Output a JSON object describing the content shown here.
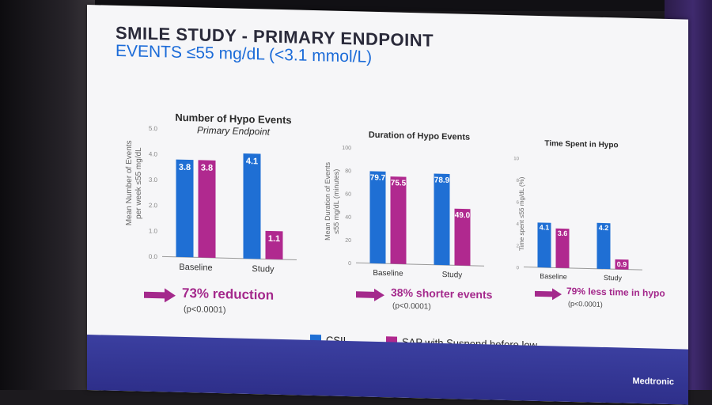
{
  "slide": {
    "title_line1": "SMILE STUDY  -  PRIMARY ENDPOINT",
    "title_line2": "EVENTS ≤55 mg/dL (<3.1 mmol/L)",
    "brand": "Medtronic",
    "colors": {
      "csii": "#1f6fd4",
      "sap": "#b0298f",
      "result_text": "#a4298c",
      "title_blue": "#1b6bd8"
    }
  },
  "legend": {
    "items": [
      {
        "label": "CSII",
        "color": "#1f6fd4"
      },
      {
        "label": "SAP with Suspend before low",
        "color": "#b0298f"
      }
    ]
  },
  "panels": [
    {
      "title": "Number of Hypo Events",
      "subtitle": "Primary Endpoint",
      "ylabel_line1": "Mean Number of Events",
      "ylabel_line2": "per week ≤55 mg/dL",
      "result": "73% reduction",
      "pvalue": "(p<0.0001)"
    },
    {
      "title": "Duration of Hypo Events",
      "subtitle": "",
      "ylabel_line1": "Mean Duration of Events",
      "ylabel_line2": "≤55 mg/dL (minutes)",
      "result": "38% shorter events",
      "pvalue": "(p<0.0001)"
    },
    {
      "title": "Time Spent in Hypo",
      "subtitle": "",
      "ylabel_line1": "Time spent ≤55 mg/dL (%)",
      "ylabel_line2": "",
      "result": "79% less time in hypo",
      "pvalue": "(p<0.0001)"
    }
  ],
  "chart_data": [
    {
      "type": "bar",
      "title": "Number of Hypo Events",
      "subtitle": "Primary Endpoint",
      "ylabel": "Mean Number of Events per week ≤55 mg/dL",
      "categories": [
        "Baseline",
        "Study"
      ],
      "series": [
        {
          "name": "CSII",
          "values": [
            3.8,
            4.1
          ]
        },
        {
          "name": "SAP with Suspend before low",
          "values": [
            3.8,
            1.1
          ]
        }
      ],
      "ylim": [
        0,
        5
      ],
      "yticks": [
        "0.0",
        "1.0",
        "2.0",
        "3.0",
        "4.0",
        "5.0"
      ],
      "labels": [
        "3.8",
        "4.1",
        "3.8",
        "1.1"
      ]
    },
    {
      "type": "bar",
      "title": "Duration of Hypo Events",
      "ylabel": "Mean Duration of Events ≤55 mg/dL (minutes)",
      "categories": [
        "Baseline",
        "Study"
      ],
      "series": [
        {
          "name": "CSII",
          "values": [
            79.7,
            78.9
          ]
        },
        {
          "name": "SAP with Suspend before low",
          "values": [
            75.5,
            49.0
          ]
        }
      ],
      "ylim": [
        0,
        100
      ],
      "yticks": [
        "0",
        "20",
        "40",
        "60",
        "80",
        "100"
      ],
      "labels": [
        "79.7",
        "78.9",
        "75.5",
        "49.0"
      ]
    },
    {
      "type": "bar",
      "title": "Time Spent in Hypo",
      "ylabel": "Time spent ≤55 mg/dL (%)",
      "categories": [
        "Baseline",
        "Study"
      ],
      "series": [
        {
          "name": "CSII",
          "values": [
            4.1,
            4.2
          ]
        },
        {
          "name": "SAP with Suspend before low",
          "values": [
            3.6,
            0.9
          ]
        }
      ],
      "ylim": [
        0,
        10
      ],
      "yticks": [
        "0",
        "2",
        "4",
        "6",
        "8",
        "10"
      ],
      "labels": [
        "4.1",
        "4.2",
        "3.6",
        "0.9"
      ]
    }
  ]
}
